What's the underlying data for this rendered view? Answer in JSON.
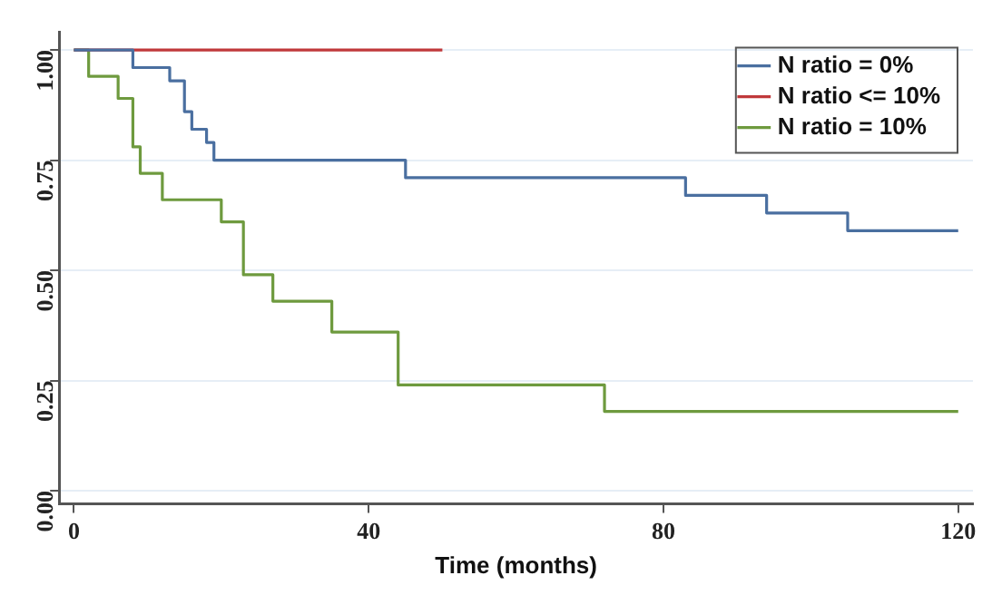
{
  "chart_data": {
    "type": "step",
    "xlabel": "Time (months)",
    "xlim": [
      -2,
      122
    ],
    "xticks": [
      0,
      40,
      80,
      120
    ],
    "ylim": [
      -0.03,
      1.04
    ],
    "yticks": [
      {
        "value": 0,
        "label": "0.00"
      },
      {
        "value": 0.25,
        "label": "0.25"
      },
      {
        "value": 0.5,
        "label": "0.50"
      },
      {
        "value": 0.75,
        "label": "0.75"
      },
      {
        "value": 1,
        "label": "1.00"
      }
    ],
    "grid": "y",
    "legend": "top right",
    "marker": "none",
    "line_style": "solid",
    "series": [
      {
        "name": "N ratio = 0%",
        "color": "#4a6fa0",
        "x": [
          0,
          8,
          13,
          15,
          16,
          18,
          19,
          45,
          83,
          94,
          105,
          120
        ],
        "values": [
          1,
          0.96,
          0.93,
          0.86,
          0.82,
          0.79,
          0.75,
          0.71,
          0.67,
          0.63,
          0.59,
          0.59
        ]
      },
      {
        "name": "N ratio <= 10%",
        "color": "#c0393b",
        "x": [
          0,
          50
        ],
        "values": [
          1,
          1
        ]
      },
      {
        "name": "N ratio = 10%",
        "color": "#6e9a3e",
        "x": [
          0,
          2,
          6,
          8,
          9,
          12,
          20,
          23,
          27,
          35,
          44,
          72,
          120
        ],
        "values": [
          1,
          0.94,
          0.89,
          0.78,
          0.72,
          0.66,
          0.61,
          0.49,
          0.43,
          0.36,
          0.24,
          0.18,
          0.18
        ]
      }
    ]
  }
}
